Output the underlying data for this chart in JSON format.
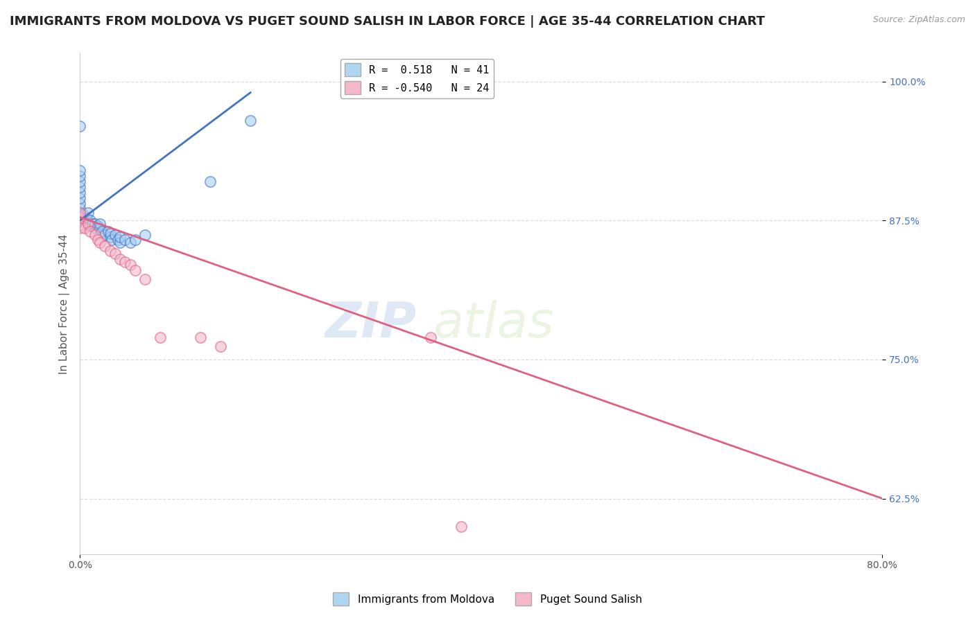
{
  "title": "IMMIGRANTS FROM MOLDOVA VS PUGET SOUND SALISH IN LABOR FORCE | AGE 35-44 CORRELATION CHART",
  "source": "Source: ZipAtlas.com",
  "ylabel": "In Labor Force | Age 35-44",
  "xlim": [
    0.0,
    0.8
  ],
  "ylim": [
    0.575,
    1.025
  ],
  "ytick_positions": [
    0.625,
    0.75,
    0.875,
    1.0
  ],
  "ytick_labels": [
    "62.5%",
    "75.0%",
    "87.5%",
    "100.0%"
  ],
  "series": [
    {
      "name": "Immigrants from Moldova",
      "color": "#A8CFF0",
      "edge_color": "#4472C4",
      "R": 0.518,
      "N": 41,
      "x": [
        0.0,
        0.0,
        0.0,
        0.0,
        0.0,
        0.0,
        0.0,
        0.0,
        0.0,
        0.0,
        0.0,
        0.0,
        0.003,
        0.003,
        0.005,
        0.007,
        0.008,
        0.01,
        0.01,
        0.012,
        0.015,
        0.015,
        0.018,
        0.02,
        0.02,
        0.022,
        0.025,
        0.028,
        0.03,
        0.03,
        0.032,
        0.035,
        0.038,
        0.04,
        0.04,
        0.045,
        0.05,
        0.055,
        0.065,
        0.13,
        0.17
      ],
      "y": [
        0.875,
        0.878,
        0.882,
        0.886,
        0.89,
        0.895,
        0.9,
        0.905,
        0.91,
        0.915,
        0.92,
        0.96,
        0.875,
        0.88,
        0.873,
        0.877,
        0.882,
        0.87,
        0.875,
        0.872,
        0.868,
        0.872,
        0.87,
        0.868,
        0.872,
        0.865,
        0.862,
        0.865,
        0.86,
        0.863,
        0.858,
        0.862,
        0.858,
        0.855,
        0.86,
        0.858,
        0.855,
        0.858,
        0.862,
        0.91,
        0.965
      ],
      "trend_x": [
        0.0,
        0.17
      ],
      "trend_y": [
        0.875,
        0.99
      ],
      "legend_label": "R =  0.518   N = 41"
    },
    {
      "name": "Puget Sound Salish",
      "color": "#F4B8CA",
      "edge_color": "#E06080",
      "R": -0.54,
      "N": 24,
      "x": [
        0.0,
        0.0,
        0.0,
        0.0,
        0.0,
        0.005,
        0.008,
        0.01,
        0.015,
        0.018,
        0.02,
        0.025,
        0.03,
        0.035,
        0.04,
        0.045,
        0.05,
        0.055,
        0.065,
        0.08,
        0.12,
        0.14,
        0.35,
        0.38
      ],
      "y": [
        0.875,
        0.878,
        0.882,
        0.871,
        0.868,
        0.868,
        0.872,
        0.865,
        0.862,
        0.858,
        0.855,
        0.852,
        0.848,
        0.845,
        0.84,
        0.838,
        0.835,
        0.83,
        0.822,
        0.77,
        0.77,
        0.762,
        0.77,
        0.6
      ],
      "trend_x": [
        0.0,
        0.8
      ],
      "trend_y": [
        0.878,
        0.625
      ],
      "legend_label": "R = -0.540   N = 24"
    }
  ],
  "legend_box_colors": [
    "#AED6F1",
    "#F4B8CA"
  ],
  "watermark_zip": "ZIP",
  "watermark_atlas": "atlas",
  "background_color": "#FFFFFF",
  "grid_color": "#DCDCDC",
  "title_fontsize": 13,
  "axis_fontsize": 11,
  "tick_fontsize": 10,
  "marker_size": 11,
  "marker_alpha": 0.6
}
